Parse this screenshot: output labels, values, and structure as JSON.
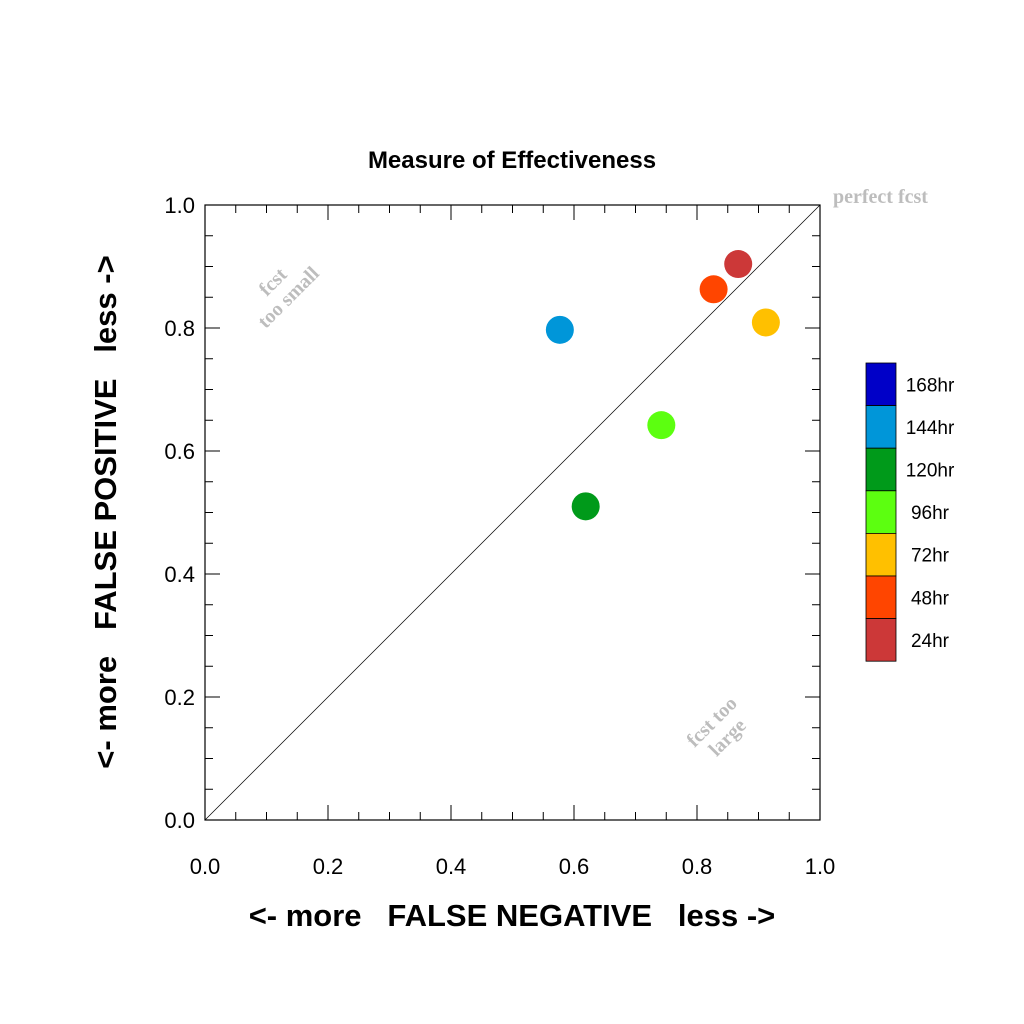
{
  "chart_data": {
    "type": "scatter",
    "title": "Measure of Effectiveness",
    "xlabel": "<- more   FALSE NEGATIVE   less ->",
    "ylabel": "<- more   FALSE POSITIVE   less ->",
    "xlim": [
      0.0,
      1.0
    ],
    "ylim": [
      0.0,
      1.0
    ],
    "xticks": [
      "0.0",
      "0.2",
      "0.4",
      "0.6",
      "0.8",
      "1.0"
    ],
    "yticks": [
      "0.0",
      "0.2",
      "0.4",
      "0.6",
      "0.8",
      "1.0"
    ],
    "grid": false,
    "reference_line": "diagonal",
    "legend_position": "right",
    "annotations": {
      "perfect": "perfect fcst",
      "small_line1": "fcst",
      "small_line2": "too small",
      "large_line1": "fcst too",
      "large_line2": "large"
    },
    "series": [
      {
        "name": "168hr",
        "color": "#0000c8",
        "x": null,
        "y": null
      },
      {
        "name": "144hr",
        "color": "#0096d9",
        "x": 0.577,
        "y": 0.797
      },
      {
        "name": "120hr",
        "color": "#009a1a",
        "x": 0.619,
        "y": 0.51
      },
      {
        "name": "96hr",
        "color": "#5cff10",
        "x": 0.742,
        "y": 0.642
      },
      {
        "name": "72hr",
        "color": "#ffc000",
        "x": 0.912,
        "y": 0.809
      },
      {
        "name": "48hr",
        "color": "#ff4500",
        "x": 0.827,
        "y": 0.863
      },
      {
        "name": "24hr",
        "color": "#cc3838",
        "x": 0.867,
        "y": 0.904
      }
    ]
  }
}
